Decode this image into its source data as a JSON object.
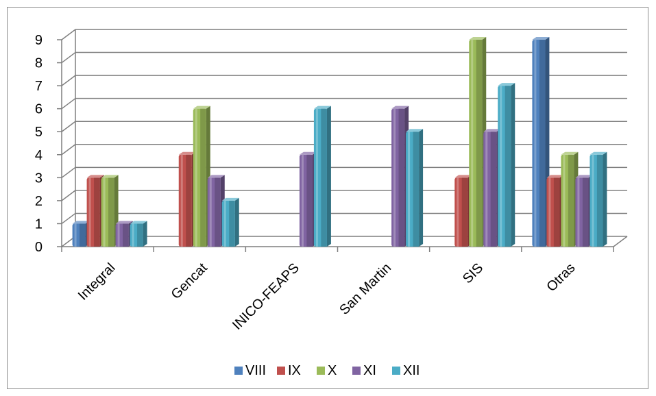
{
  "chart_data": {
    "type": "bar",
    "style": "3d-clustered-column",
    "title": "",
    "xlabel": "",
    "ylabel": "",
    "ylim": [
      0,
      9
    ],
    "yticks": [
      0,
      1,
      2,
      3,
      4,
      5,
      6,
      7,
      8,
      9
    ],
    "grid": true,
    "legend_position": "bottom",
    "categories": [
      "Integral",
      "Gencat",
      "INICO-FEAPS",
      "San Martin",
      "SIS",
      "Otras"
    ],
    "series": [
      {
        "name": "VIII",
        "color": "#4f81bd",
        "values": [
          1,
          0,
          0,
          0,
          0,
          9
        ]
      },
      {
        "name": "IX",
        "color": "#c0504d",
        "values": [
          3,
          4,
          0,
          0,
          3,
          3
        ]
      },
      {
        "name": "X",
        "color": "#9bbb59",
        "values": [
          3,
          6,
          0,
          0,
          9,
          4
        ]
      },
      {
        "name": "XI",
        "color": "#8064a2",
        "values": [
          1,
          3,
          4,
          6,
          5,
          3
        ]
      },
      {
        "name": "XII",
        "color": "#4bacc6",
        "values": [
          1,
          2,
          6,
          5,
          7,
          4
        ]
      }
    ]
  }
}
